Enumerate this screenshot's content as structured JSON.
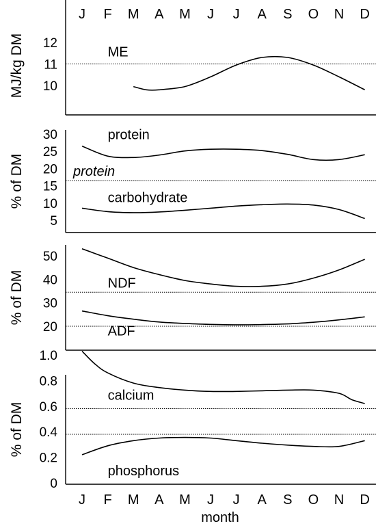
{
  "chart_data": {
    "type": "line",
    "months": [
      "J",
      "F",
      "M",
      "A",
      "M",
      "J",
      "J",
      "A",
      "S",
      "O",
      "N",
      "D"
    ],
    "xlabel": "month",
    "panels": [
      {
        "ylabel": "MJ/kg DM",
        "ylim": [
          9,
          13
        ],
        "yticks": [
          "10",
          "11",
          "12"
        ],
        "series": [
          {
            "name": "ME",
            "label_month": 1.4,
            "label_y": 11.35,
            "x": [
              2,
              2.5,
              3,
              4,
              5,
              6,
              7,
              8,
              9,
              10,
              11
            ],
            "y": [
              9.95,
              9.8,
              9.8,
              9.95,
              10.4,
              10.95,
              11.3,
              11.3,
              10.95,
              10.4,
              9.8
            ]
          }
        ],
        "reference_lines": [
          {
            "y": 11,
            "label": ""
          }
        ]
      },
      {
        "ylabel": "% of DM",
        "ylim": [
          2,
          32
        ],
        "yticks": [
          "5",
          "10",
          "15",
          "20",
          "25",
          "30"
        ],
        "series": [
          {
            "name": "protein",
            "label_month": 1.4,
            "label_y": 28.5,
            "x": [
              0,
              1,
              2,
              3,
              4,
              5,
              6,
              7,
              8,
              9,
              10,
              11
            ],
            "y": [
              26.5,
              23.6,
              23.2,
              23.9,
              25.1,
              25.6,
              25.6,
              25.2,
              24.1,
              22.6,
              22.6,
              24.0
            ]
          },
          {
            "name": "carbohydrate",
            "label_month": 1.4,
            "label_y": 10.3,
            "x": [
              0,
              1,
              2,
              3,
              4,
              5,
              6,
              7,
              8,
              9,
              10,
              11
            ],
            "y": [
              8.5,
              7.5,
              7.2,
              7.4,
              7.9,
              8.5,
              9.1,
              9.5,
              9.7,
              9.4,
              8.1,
              5.5
            ]
          }
        ],
        "reference_lines": [
          {
            "y": 16.5,
            "label": "protein"
          }
        ]
      },
      {
        "ylabel": "% of DM",
        "ylim": [
          13,
          56
        ],
        "yticks": [
          "20",
          "30",
          "40",
          "50"
        ],
        "series": [
          {
            "name": "NDF",
            "label_month": 1.4,
            "label_y": 36.5,
            "x": [
              0,
              1,
              2,
              3,
              4,
              5,
              6,
              7,
              8,
              9,
              10,
              11
            ],
            "y": [
              53,
              49,
              45,
              42,
              39.5,
              38,
              37,
              37,
              38,
              40.5,
              44,
              48.5
            ]
          },
          {
            "name": "ADF",
            "label_month": 1.4,
            "label_y": 16,
            "x": [
              0,
              1,
              2,
              3,
              4,
              5,
              6,
              7,
              8,
              9,
              10,
              11
            ],
            "y": [
              26.5,
              24.5,
              23,
              21.8,
              21.2,
              20.8,
              20.6,
              20.7,
              21,
              21.7,
              22.7,
              24
            ]
          }
        ],
        "reference_lines": [
          {
            "y": 34.5,
            "label": ""
          },
          {
            "y": 20,
            "label": ""
          }
        ]
      },
      {
        "ylabel": "% of DM",
        "ylim": [
          0,
          1.08
        ],
        "yticks": [
          "0",
          "0.2",
          "0.4",
          "0.6",
          "0.8",
          "1.0"
        ],
        "series": [
          {
            "name": "calcium",
            "label_month": 1.4,
            "label_y": 0.65,
            "x": [
              0,
              0.5,
              1,
              2,
              3,
              4,
              5,
              6,
              7,
              8,
              9,
              10,
              10.5,
              11
            ],
            "y": [
              1.03,
              0.93,
              0.86,
              0.78,
              0.745,
              0.725,
              0.715,
              0.715,
              0.72,
              0.725,
              0.725,
              0.7,
              0.65,
              0.62
            ]
          },
          {
            "name": "phosphorus",
            "label_month": 1.4,
            "label_y": 0.06,
            "x": [
              0,
              1,
              2,
              3,
              4,
              5,
              6,
              7,
              8,
              9,
              10,
              11
            ],
            "y": [
              0.22,
              0.29,
              0.33,
              0.35,
              0.355,
              0.35,
              0.33,
              0.31,
              0.295,
              0.285,
              0.285,
              0.33
            ]
          }
        ],
        "reference_lines": [
          {
            "y": 0.58,
            "label": ""
          },
          {
            "y": 0.38,
            "label": ""
          }
        ]
      }
    ]
  }
}
